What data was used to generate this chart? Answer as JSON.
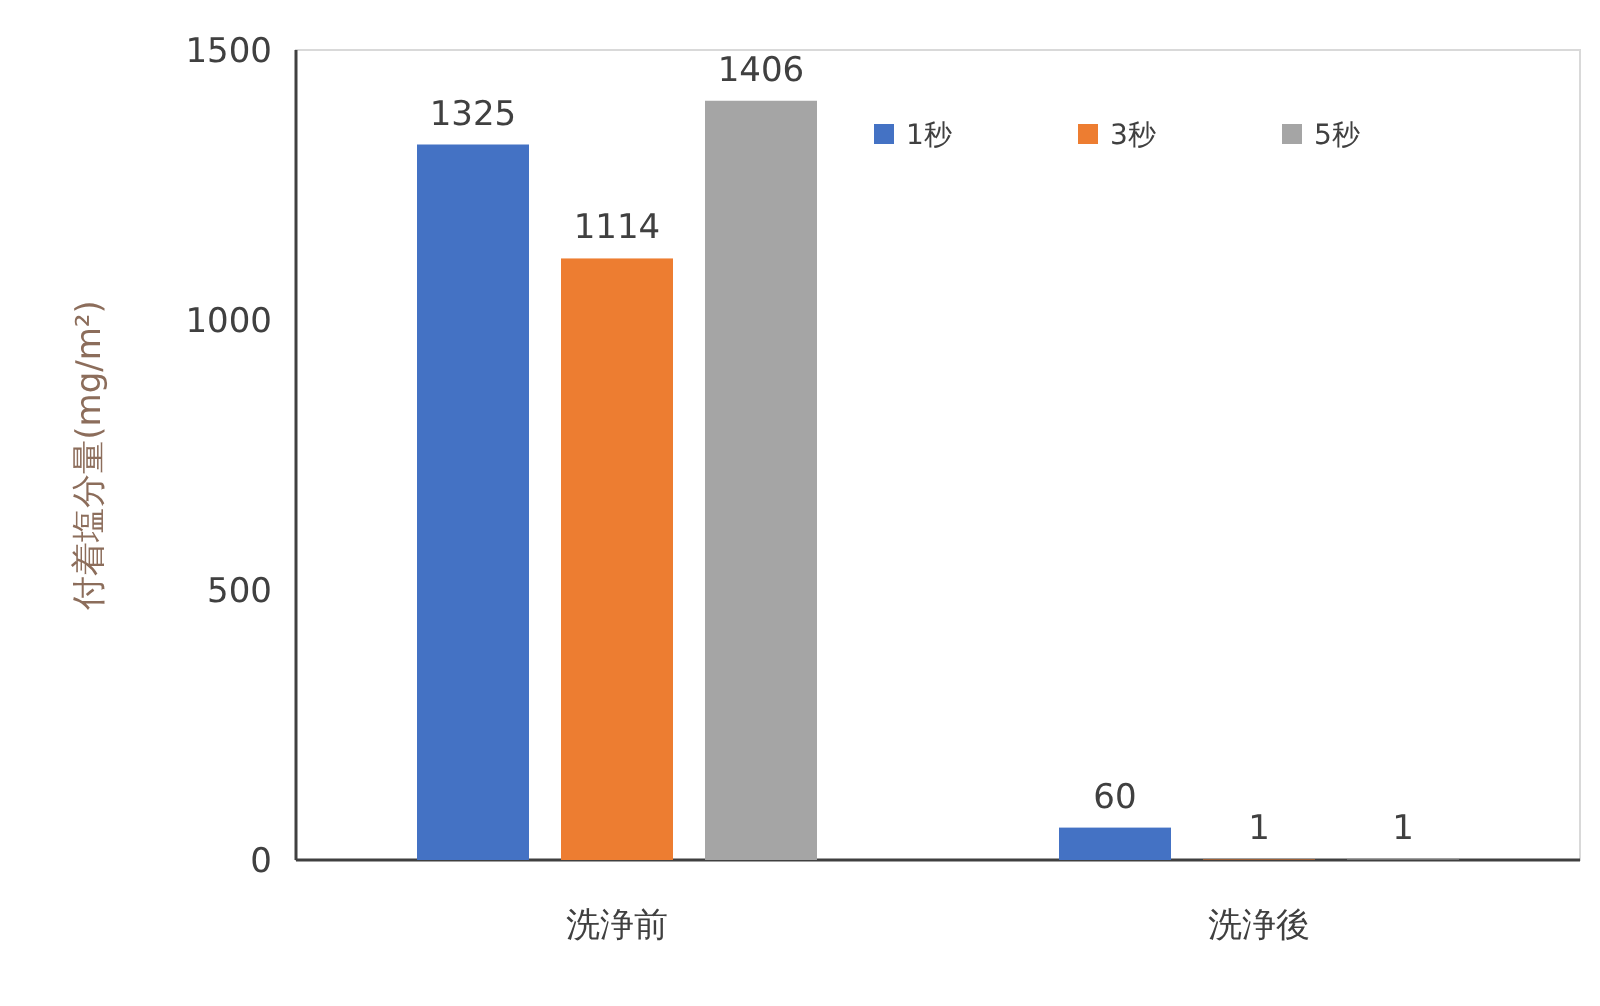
{
  "chart_data": {
    "type": "bar",
    "ylabel": "付着塩分量(mg/m²)",
    "categories": [
      "洗浄前",
      "洗浄後"
    ],
    "series": [
      {
        "name": "1秒",
        "color": "#4472c4",
        "values": [
          1325,
          60
        ]
      },
      {
        "name": "3秒",
        "color": "#ed7d31",
        "values": [
          1114,
          1
        ]
      },
      {
        "name": "5秒",
        "color": "#a5a5a5",
        "values": [
          1406,
          1
        ]
      }
    ],
    "ylim": [
      0,
      1500
    ],
    "yticks": [
      0,
      500,
      1000,
      1500
    ],
    "data_labels": true,
    "legend": "top right",
    "grid": false
  }
}
